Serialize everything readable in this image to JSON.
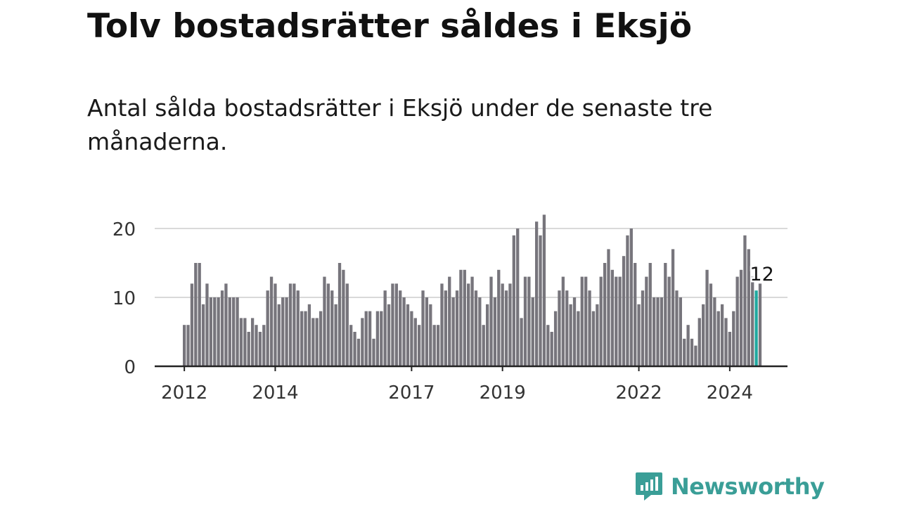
{
  "title": "Tolv bostadsrätter såldes i Eksjö",
  "subtitle": "Antal sålda bostadsrätter i Eksjö under de senaste tre månaderna.",
  "brand": {
    "name": "Newsworthy",
    "color": "#3a9e97",
    "icon": "newsworthy-logo-icon"
  },
  "chart_data": {
    "type": "bar",
    "title": "",
    "xlabel": "",
    "ylabel": "",
    "ylim": [
      0,
      22
    ],
    "yticks": [
      0,
      10,
      20
    ],
    "grid": true,
    "x_start": "2012-01",
    "x_tick_labels": [
      "2012",
      "2014",
      "2017",
      "2019",
      "2022",
      "2024"
    ],
    "x_tick_month_index": [
      0,
      24,
      60,
      84,
      120,
      144
    ],
    "bar_color": "#77757c",
    "highlight_color": "#1fa89f",
    "highlight_index": 151,
    "annotation": "12",
    "values": [
      6,
      6,
      12,
      15,
      15,
      9,
      12,
      10,
      10,
      10,
      11,
      12,
      10,
      10,
      10,
      7,
      7,
      5,
      7,
      6,
      5,
      6,
      11,
      13,
      12,
      9,
      10,
      10,
      12,
      12,
      11,
      8,
      8,
      9,
      7,
      7,
      8,
      13,
      12,
      11,
      9,
      15,
      14,
      12,
      6,
      5,
      4,
      7,
      8,
      8,
      4,
      8,
      8,
      11,
      9,
      12,
      12,
      11,
      10,
      9,
      8,
      7,
      6,
      11,
      10,
      9,
      6,
      6,
      12,
      11,
      13,
      10,
      11,
      14,
      14,
      12,
      13,
      11,
      10,
      6,
      9,
      13,
      10,
      14,
      12,
      11,
      12,
      19,
      20,
      7,
      13,
      13,
      10,
      21,
      19,
      22,
      6,
      5,
      8,
      11,
      13,
      11,
      9,
      10,
      8,
      13,
      13,
      11,
      8,
      9,
      13,
      15,
      17,
      14,
      13,
      13,
      16,
      19,
      20,
      15,
      9,
      11,
      13,
      15,
      10,
      10,
      10,
      15,
      13,
      17,
      11,
      10,
      4,
      6,
      4,
      3,
      7,
      9,
      14,
      12,
      10,
      8,
      9,
      7,
      5,
      8,
      13,
      14,
      19,
      17,
      13,
      11,
      12
    ]
  }
}
